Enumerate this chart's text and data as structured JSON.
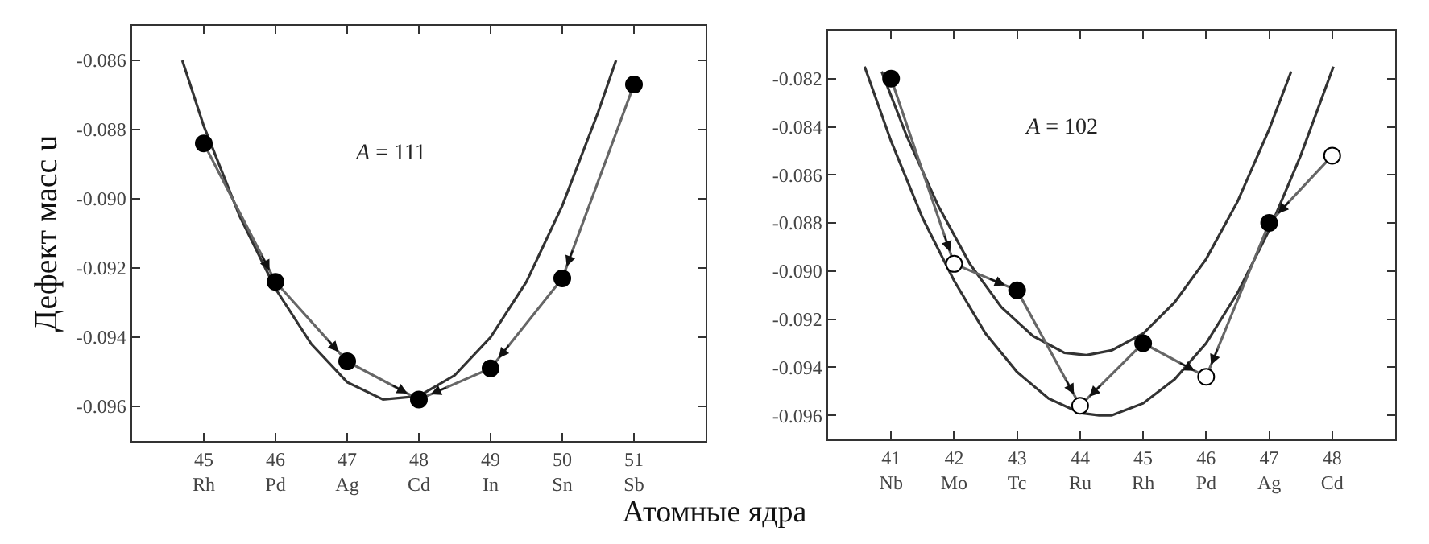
{
  "chart_data": [
    {
      "type": "line",
      "ylabel": "Дефект масс u",
      "xlabel": "Атомные ядра",
      "annotations": [
        "A = 111"
      ],
      "xlim": [
        44,
        52
      ],
      "ylim": [
        -0.097,
        -0.085
      ],
      "xticks": [
        {
          "value": 45,
          "label": "45\nRh"
        },
        {
          "value": 46,
          "label": "46\nPd"
        },
        {
          "value": 47,
          "label": "47\nAg"
        },
        {
          "value": 48,
          "label": "48\nCd"
        },
        {
          "value": 49,
          "label": "49\nIn"
        },
        {
          "value": 50,
          "label": "50\nSn"
        },
        {
          "value": 51,
          "label": "51\nSb"
        }
      ],
      "yticks": [
        -0.086,
        -0.088,
        {
          "value": -0.09,
          "label": "-0.090"
        },
        -0.092,
        -0.094,
        -0.096
      ],
      "series": [
        {
          "marker": "none",
          "color": "#333333",
          "x": [
            44.7,
            45,
            45.5,
            46,
            46.5,
            47,
            47.5,
            48,
            48.5,
            49,
            49.5,
            50,
            50.5,
            50.75
          ],
          "values": [
            -0.086,
            -0.0879,
            -0.0905,
            -0.0926,
            -0.0942,
            -0.0953,
            -0.0958,
            -0.0957,
            -0.0951,
            -0.094,
            -0.0924,
            -0.0902,
            -0.0875,
            -0.086
          ]
        },
        {
          "marker": "none",
          "color": "#666666",
          "x": [
            45,
            46,
            47,
            48
          ],
          "values": [
            -0.0884,
            -0.0924,
            -0.0947,
            -0.0958
          ]
        },
        {
          "marker": "none",
          "color": "#666666",
          "x": [
            51,
            50,
            49,
            48
          ],
          "values": [
            -0.0867,
            -0.0923,
            -0.0949,
            -0.0958
          ]
        },
        {
          "type": "scatter",
          "marker": "circle",
          "color": "#000000",
          "x": [
            45,
            46,
            47,
            48,
            49,
            50,
            51
          ],
          "values": [
            -0.0884,
            -0.0924,
            -0.0947,
            -0.0958,
            -0.0949,
            -0.0923,
            -0.0867
          ]
        }
      ]
    },
    {
      "type": "line",
      "annotations": [
        "A = 102"
      ],
      "xlim": [
        40,
        49
      ],
      "ylim": [
        -0.097,
        -0.08
      ],
      "xticks": [
        {
          "value": 41,
          "label": "41\nNb"
        },
        {
          "value": 42,
          "label": "42\nMo"
        },
        {
          "value": 43,
          "label": "43\nTc"
        },
        {
          "value": 44,
          "label": "44\nRu"
        },
        {
          "value": 45,
          "label": "45\nRh"
        },
        {
          "value": 46,
          "label": "46\nPd"
        },
        {
          "value": 47,
          "label": "47\nAg"
        },
        {
          "value": 48,
          "label": "48\nCd"
        }
      ],
      "yticks": [
        -0.082,
        -0.084,
        -0.086,
        -0.088,
        {
          "value": -0.09,
          "label": "-0.090"
        },
        -0.092,
        -0.094,
        -0.096
      ],
      "series": [
        {
          "marker": "none",
          "color": "#333333",
          "x": [
            40.85,
            41.25,
            41.75,
            42.25,
            42.75,
            43.25,
            43.75,
            44.1,
            44.5,
            45,
            45.5,
            46,
            46.5,
            47,
            47.35
          ],
          "values": [
            -0.0817,
            -0.0844,
            -0.0873,
            -0.0897,
            -0.0915,
            -0.0927,
            -0.0934,
            -0.0935,
            -0.0933,
            -0.0926,
            -0.0913,
            -0.0895,
            -0.0871,
            -0.0841,
            -0.0817
          ]
        },
        {
          "marker": "none",
          "color": "#333333",
          "x": [
            40.58,
            41,
            41.5,
            42,
            42.5,
            43,
            43.5,
            44,
            44.3,
            44.5,
            45,
            45.5,
            46,
            46.5,
            47,
            47.5,
            48.02
          ],
          "values": [
            -0.0815,
            -0.0846,
            -0.0878,
            -0.0904,
            -0.0926,
            -0.0942,
            -0.0953,
            -0.0959,
            -0.096,
            -0.096,
            -0.0955,
            -0.0945,
            -0.093,
            -0.0909,
            -0.0883,
            -0.0852,
            -0.0815
          ]
        },
        {
          "marker": "none",
          "color": "#666666",
          "x": [
            41,
            42,
            43,
            44
          ],
          "values": [
            -0.082,
            -0.0897,
            -0.0908,
            -0.0956
          ]
        },
        {
          "marker": "none",
          "color": "#666666",
          "x": [
            48,
            47,
            46
          ],
          "values": [
            -0.0852,
            -0.088,
            -0.0944
          ]
        },
        {
          "marker": "none",
          "color": "#666666",
          "x": [
            45,
            44
          ],
          "values": [
            -0.093,
            -0.0956
          ]
        },
        {
          "marker": "none",
          "color": "#666666",
          "x": [
            45,
            46
          ],
          "values": [
            -0.093,
            -0.0944
          ]
        },
        {
          "type": "scatter",
          "marker": "circle",
          "color": "#000000",
          "x": [
            41,
            43,
            45,
            47
          ],
          "values": [
            -0.082,
            -0.0908,
            -0.093,
            -0.088
          ]
        },
        {
          "type": "scatter",
          "marker": "circle",
          "color": "#ffffff",
          "x": [
            42,
            44,
            46,
            48
          ],
          "values": [
            -0.0897,
            -0.0956,
            -0.0944,
            -0.0852
          ]
        }
      ]
    }
  ]
}
